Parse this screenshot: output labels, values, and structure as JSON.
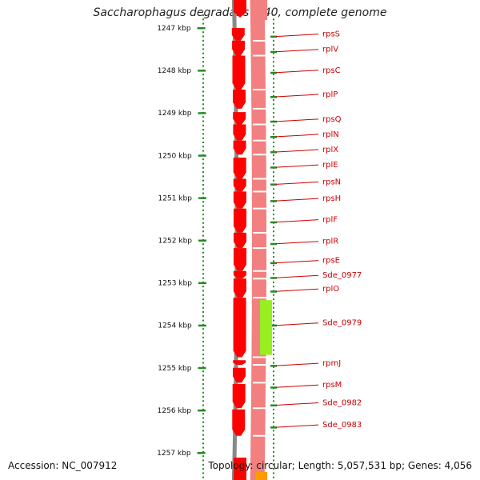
{
  "title": "Saccharophagus degradans 2-40, complete genome",
  "accession_label": "Accession: NC_007912",
  "summary_label": "Topology: circular; Length: 5,057,531 bp; Genes: 4,056",
  "colors": {
    "gene_forward": "#ff0000",
    "gene_reverse_track": "#f28080",
    "gene_highlight": "#99ee22",
    "label": "#cc0000",
    "tick": "#228b22",
    "backbone": "#888888"
  },
  "scale_unit": "kbp",
  "ticks": [
    {
      "kbp": 1247,
      "label": "1247 kbp"
    },
    {
      "kbp": 1248,
      "label": "1248 kbp"
    },
    {
      "kbp": 1249,
      "label": "1249 kbp"
    },
    {
      "kbp": 1250,
      "label": "1250 kbp"
    },
    {
      "kbp": 1251,
      "label": "1251 kbp"
    },
    {
      "kbp": 1252,
      "label": "1252 kbp"
    },
    {
      "kbp": 1253,
      "label": "1253 kbp"
    },
    {
      "kbp": 1254,
      "label": "1254 kbp"
    },
    {
      "kbp": 1255,
      "label": "1255 kbp"
    },
    {
      "kbp": 1256,
      "label": "1256 kbp"
    },
    {
      "kbp": 1257,
      "label": "1257 kbp"
    }
  ],
  "genes": [
    {
      "name": "rpsS",
      "start": 1247.0,
      "end": 1247.3,
      "label_kbp": 1247.2
    },
    {
      "name": "rplV",
      "start": 1247.3,
      "end": 1247.65,
      "label_kbp": 1247.56
    },
    {
      "name": "rpsC",
      "start": 1247.65,
      "end": 1248.45,
      "label_kbp": 1248.05
    },
    {
      "name": "rplP",
      "start": 1248.45,
      "end": 1248.9,
      "label_kbp": 1248.62
    },
    {
      "name": "rpsQ",
      "start": 1248.98,
      "end": 1249.27,
      "label_kbp": 1249.2
    },
    {
      "name": "rplN",
      "start": 1249.27,
      "end": 1249.65,
      "label_kbp": 1249.56
    },
    {
      "name": "rplX",
      "start": 1249.65,
      "end": 1249.98,
      "label_kbp": 1249.92
    },
    {
      "name": "rplE",
      "start": 1250.05,
      "end": 1250.55,
      "label_kbp": 1250.28
    },
    {
      "name": "rpsN",
      "start": 1250.55,
      "end": 1250.85,
      "label_kbp": 1250.68
    },
    {
      "name": "rpsH",
      "start": 1250.85,
      "end": 1251.25,
      "label_kbp": 1251.07
    },
    {
      "name": "rplF",
      "start": 1251.25,
      "end": 1251.82,
      "label_kbp": 1251.57
    },
    {
      "name": "rplR",
      "start": 1251.82,
      "end": 1252.18,
      "label_kbp": 1252.08
    },
    {
      "name": "rpsE",
      "start": 1252.18,
      "end": 1252.72,
      "label_kbp": 1252.53
    },
    {
      "name": "Sde_0977",
      "start": 1252.72,
      "end": 1252.9,
      "label_kbp": 1252.88
    },
    {
      "name": "rplO",
      "start": 1252.9,
      "end": 1253.35,
      "label_kbp": 1253.2
    },
    {
      "name": "Sde_0979",
      "start": 1253.35,
      "end": 1254.75,
      "label_kbp": 1254.0,
      "highlight": true
    },
    {
      "name": "rpmJ",
      "start": 1254.82,
      "end": 1254.93,
      "label_kbp": 1254.95
    },
    {
      "name": "rpsM",
      "start": 1255.0,
      "end": 1255.35,
      "label_kbp": 1255.46
    },
    {
      "name": "Sde_0982",
      "start": 1255.38,
      "end": 1255.95,
      "label_kbp": 1255.88
    },
    {
      "name": "Sde_0983",
      "start": 1255.98,
      "end": 1256.6,
      "label_kbp": 1256.4
    }
  ]
}
